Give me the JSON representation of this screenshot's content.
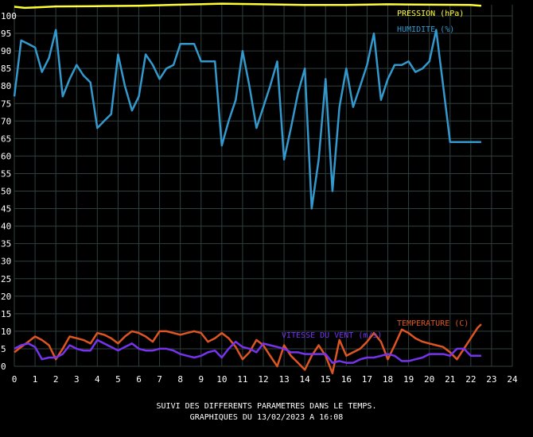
{
  "chart_data": {
    "type": "line",
    "xlim": [
      0,
      24
    ],
    "ylim": [
      0,
      100
    ],
    "x_ticks": [
      "0",
      "1",
      "2",
      "3",
      "4",
      "5",
      "6",
      "7",
      "8",
      "9",
      "10",
      "11",
      "12",
      "13",
      "14",
      "15",
      "16",
      "17",
      "18",
      "19",
      "20",
      "21",
      "22",
      "23",
      "24"
    ],
    "y_ticks": [
      "0",
      "5",
      "10",
      "15",
      "20",
      "25",
      "30",
      "35",
      "40",
      "45",
      "50",
      "55",
      "60",
      "65",
      "70",
      "75",
      "80",
      "85",
      "90",
      "95",
      "100"
    ],
    "grid": true,
    "series": [
      {
        "name": "PRESSION (hPa)",
        "color": "#ffff33",
        "x": [
          0,
          0.5,
          1,
          2,
          4,
          6,
          8,
          10,
          12,
          14,
          16,
          18,
          20,
          22,
          22.5
        ],
        "values": [
          102.6,
          102.3,
          102.4,
          102.7,
          102.8,
          102.9,
          103.2,
          103.5,
          103.3,
          103.1,
          103.1,
          103.3,
          103.2,
          103.1,
          102.9
        ]
      },
      {
        "name": "HUMIDITE (%)",
        "color": "#3399cc",
        "x": [
          0,
          0.33,
          0.67,
          1.0,
          1.33,
          1.67,
          2.0,
          2.33,
          2.67,
          3.0,
          3.33,
          3.67,
          4.0,
          4.33,
          4.67,
          5.0,
          5.33,
          5.67,
          6.0,
          6.33,
          6.67,
          7.0,
          7.33,
          7.67,
          8.0,
          8.33,
          8.67,
          9.0,
          9.33,
          9.67,
          10.0,
          10.33,
          10.67,
          11.0,
          11.33,
          11.67,
          12.0,
          12.33,
          12.67,
          13.0,
          13.33,
          13.67,
          14.0,
          14.33,
          14.67,
          15.0,
          15.33,
          15.67,
          16.0,
          16.33,
          16.67,
          17.0,
          17.33,
          17.67,
          18.0,
          18.33,
          18.67,
          19.0,
          19.33,
          19.67,
          20.0,
          20.33,
          20.67,
          21.0,
          21.33,
          21.67,
          22.0,
          22.33,
          22.5
        ],
        "values": [
          77,
          93,
          92,
          91,
          84,
          88,
          96,
          77,
          82,
          86,
          83,
          81,
          68,
          70,
          72,
          89,
          80,
          73,
          77,
          89,
          86,
          82,
          85,
          86,
          92,
          92,
          92,
          87,
          87,
          87,
          63,
          70,
          76,
          90,
          80,
          68,
          74,
          80,
          87,
          59,
          68,
          78,
          85,
          45,
          59,
          82,
          50,
          74,
          85,
          74,
          80,
          86,
          95,
          76,
          82,
          86,
          86,
          87,
          84,
          85,
          87,
          96,
          80,
          64,
          64,
          64,
          64,
          64,
          64
        ]
      },
      {
        "name": "TEMPERATURE (C)",
        "color": "#dd5522",
        "x": [
          0,
          0.33,
          0.67,
          1.0,
          1.33,
          1.67,
          2.0,
          2.33,
          2.67,
          3.0,
          3.33,
          3.67,
          4.0,
          4.33,
          4.67,
          5.0,
          5.33,
          5.67,
          6.0,
          6.33,
          6.67,
          7.0,
          7.33,
          7.67,
          8.0,
          8.33,
          8.67,
          9.0,
          9.33,
          9.67,
          10.0,
          10.33,
          10.67,
          11.0,
          11.33,
          11.67,
          12.0,
          12.33,
          12.67,
          13.0,
          13.33,
          13.67,
          14.0,
          14.33,
          14.67,
          15.0,
          15.33,
          15.67,
          16.0,
          16.33,
          16.67,
          17.0,
          17.33,
          17.67,
          18.0,
          18.33,
          18.67,
          19.0,
          19.33,
          19.67,
          20.0,
          20.33,
          20.67,
          21.0,
          21.33,
          21.67,
          22.0,
          22.33,
          22.5
        ],
        "values": [
          4,
          5.5,
          7,
          8.5,
          7.5,
          6,
          2,
          5,
          8.5,
          8,
          7.5,
          6.5,
          9.5,
          9,
          8,
          6.5,
          8.5,
          10,
          9.5,
          8.5,
          7,
          10,
          10,
          9.5,
          9,
          9.5,
          10,
          9.5,
          7,
          8,
          9.5,
          8,
          5.5,
          2,
          4,
          7.5,
          6,
          3,
          0,
          6,
          3,
          1,
          -1,
          3,
          6,
          3,
          -2,
          7.5,
          3,
          4,
          5,
          7,
          9.5,
          7,
          2,
          6,
          10.5,
          9.5,
          8,
          7,
          6.5,
          6,
          5.5,
          4,
          2,
          5,
          8,
          11,
          12
        ]
      },
      {
        "name": "VITESSE DU VENT (m/s)",
        "color": "#7733ee",
        "x": [
          0,
          0.33,
          0.67,
          1.0,
          1.33,
          1.67,
          2.0,
          2.33,
          2.67,
          3.0,
          3.33,
          3.67,
          4.0,
          4.33,
          4.67,
          5.0,
          5.33,
          5.67,
          6.0,
          6.33,
          6.67,
          7.0,
          7.33,
          7.67,
          8.0,
          8.33,
          8.67,
          9.0,
          9.33,
          9.67,
          10.0,
          10.33,
          10.67,
          11.0,
          11.33,
          11.67,
          12.0,
          12.33,
          12.67,
          13.0,
          13.33,
          13.67,
          14.0,
          14.33,
          14.67,
          15.0,
          15.33,
          15.67,
          16.0,
          16.33,
          16.67,
          17.0,
          17.33,
          17.67,
          18.0,
          18.33,
          18.67,
          19.0,
          19.33,
          19.67,
          20.0,
          20.33,
          20.67,
          21.0,
          21.33,
          21.67,
          22.0,
          22.33,
          22.5
        ],
        "values": [
          5,
          6,
          6.5,
          5.5,
          2,
          2.5,
          2.5,
          3.5,
          6,
          5,
          4.5,
          4.5,
          7.5,
          6.5,
          5.5,
          4.5,
          5.5,
          6.5,
          5,
          4.5,
          4.5,
          5,
          5,
          4.5,
          3.5,
          3,
          2.5,
          3,
          4,
          4.5,
          2.5,
          5,
          7,
          5.5,
          5,
          4,
          6.5,
          6,
          5.5,
          5,
          4,
          4,
          3.5,
          3.5,
          3.5,
          3.5,
          1,
          1.5,
          1,
          1,
          2,
          2.5,
          2.5,
          3,
          3.5,
          3,
          1.5,
          1.5,
          2,
          2.5,
          3.5,
          3.5,
          3.5,
          3,
          5,
          5,
          3,
          3,
          3
        ]
      }
    ]
  },
  "legend": {
    "pression": "PRESSION (hPa)",
    "humidite": "HUMIDITE (%)",
    "temperature": "TEMPERATURE (C)",
    "vent": "VITESSE DU VENT (m/s)"
  },
  "caption": {
    "line1": "SUIVI DES DIFFERENTS PARAMETRES DANS LE TEMPS.",
    "line2": "GRAPHIQUES DU 13/02/2023 A 16:08"
  },
  "colors": {
    "background": "#000000",
    "grid": "#2f3f3f",
    "text": "#ffffff"
  }
}
